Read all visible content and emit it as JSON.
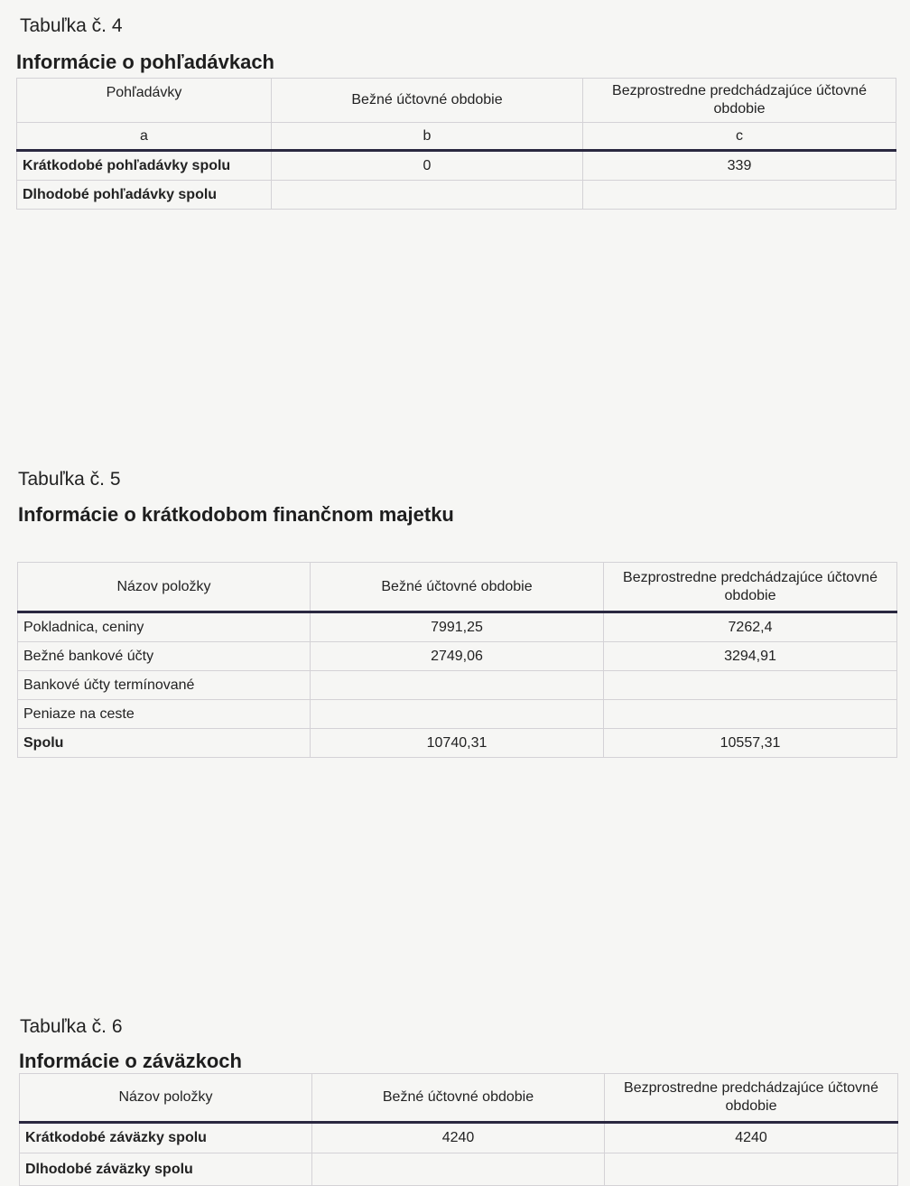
{
  "table4": {
    "caption": "Tabuľka č. 4",
    "heading": "Informácie o pohľadávkach",
    "headers": [
      "Pohľadávky",
      "Bežné účtovné obdobie",
      "Bezprostredne predchádzajúce účtovné obdobie"
    ],
    "letters": [
      "a",
      "b",
      "c"
    ],
    "rows": [
      {
        "label": "Krátkodobé pohľadávky spolu",
        "current": "0",
        "previous": "339"
      },
      {
        "label": "Dlhodobé pohľadávky spolu",
        "current": "",
        "previous": ""
      }
    ]
  },
  "table5": {
    "caption": "Tabuľka č. 5",
    "heading": "Informácie o krátkodobom finančnom majetku",
    "headers": [
      "Názov položky",
      "Bežné účtovné obdobie",
      "Bezprostredne predchádzajúce účtovné obdobie"
    ],
    "rows": [
      {
        "label": "Pokladnica, ceniny",
        "current": "7991,25",
        "previous": "7262,4"
      },
      {
        "label": "Bežné bankové účty",
        "current": "2749,06",
        "previous": "3294,91"
      },
      {
        "label": "Bankové účty termínované",
        "current": "",
        "previous": ""
      },
      {
        "label": "Peniaze na ceste",
        "current": "",
        "previous": ""
      },
      {
        "label": "Spolu",
        "current": "10740,31",
        "previous": "10557,31"
      }
    ]
  },
  "table6": {
    "caption": "Tabuľka č. 6",
    "heading": "Informácie o záväzkoch",
    "headers": [
      "Názov položky",
      "Bežné účtovné obdobie",
      "Bezprostredne predchádzajúce účtovné obdobie"
    ],
    "rows": [
      {
        "label": "Krátkodobé záväzky spolu",
        "current": "4240",
        "previous": "4240"
      },
      {
        "label": "Dlhodobé záväzky spolu",
        "current": "",
        "previous": ""
      }
    ]
  }
}
